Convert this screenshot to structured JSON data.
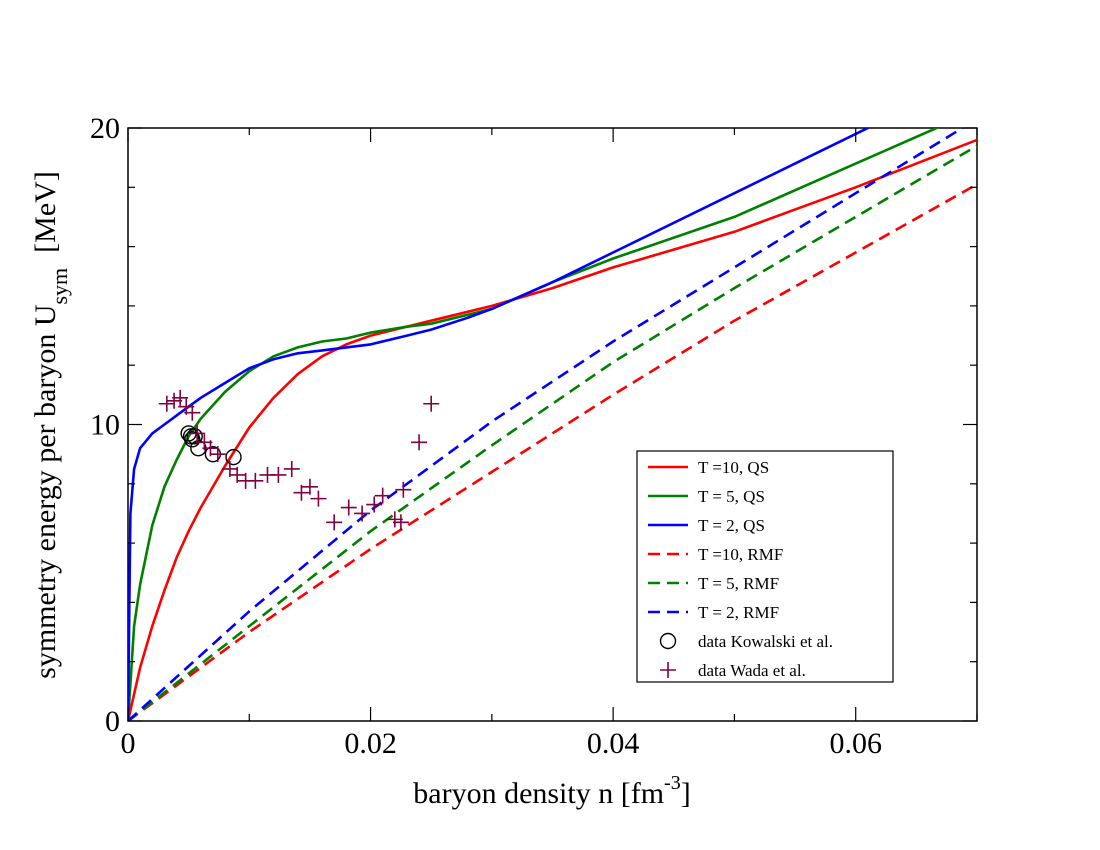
{
  "chart_data": {
    "type": "line",
    "xlabel": "baryon density n [fm",
    "xlabel_sup": "-3",
    "xlabel_tail": "]",
    "ylabel": "symmetry energy per baryon U",
    "ylabel_sub": "sym",
    "ylabel_tail": "  [MeV]",
    "xlim": [
      0,
      0.07
    ],
    "ylim": [
      0,
      20
    ],
    "x_ticks": [
      {
        "value": 0,
        "label": "0"
      },
      {
        "value": 0.02,
        "label": "0.02"
      },
      {
        "value": 0.04,
        "label": "0.04"
      },
      {
        "value": 0.06,
        "label": "0.06"
      }
    ],
    "y_ticks": [
      {
        "value": 0,
        "label": "0"
      },
      {
        "value": 10,
        "label": "10"
      },
      {
        "value": 20,
        "label": "20"
      }
    ],
    "x_minor_step": 0.01,
    "y_minor_step": 2,
    "grid": false,
    "legend_position": "lower-right",
    "series": [
      {
        "name": "T =10, QS",
        "color": "#ff0000",
        "style": "solid",
        "x": [
          0,
          0.001,
          0.002,
          0.003,
          0.004,
          0.005,
          0.006,
          0.008,
          0.01,
          0.012,
          0.014,
          0.016,
          0.018,
          0.02,
          0.022,
          0.025,
          0.03,
          0.035,
          0.04,
          0.05,
          0.06,
          0.07
        ],
        "y": [
          0,
          1.8,
          3.2,
          4.4,
          5.5,
          6.4,
          7.2,
          8.6,
          9.9,
          10.9,
          11.7,
          12.3,
          12.7,
          13.0,
          13.2,
          13.5,
          14.0,
          14.6,
          15.3,
          16.5,
          18.0,
          19.6
        ]
      },
      {
        "name": "T = 5, QS",
        "color": "#008000",
        "style": "solid",
        "x": [
          0,
          0.0005,
          0.001,
          0.002,
          0.003,
          0.004,
          0.005,
          0.006,
          0.008,
          0.01,
          0.012,
          0.014,
          0.016,
          0.018,
          0.02,
          0.023,
          0.025,
          0.03,
          0.035,
          0.04,
          0.05,
          0.06,
          0.07
        ],
        "y": [
          0,
          3.2,
          4.6,
          6.6,
          7.9,
          8.8,
          9.6,
          10.2,
          11.1,
          11.8,
          12.3,
          12.6,
          12.8,
          12.9,
          13.1,
          13.3,
          13.4,
          13.9,
          14.8,
          15.6,
          17.0,
          18.8,
          20.6
        ]
      },
      {
        "name": "T = 2, QS",
        "color": "#0000ff",
        "style": "solid",
        "x": [
          0,
          0.0002,
          0.0005,
          0.001,
          0.002,
          0.003,
          0.004,
          0.005,
          0.006,
          0.008,
          0.01,
          0.012,
          0.014,
          0.016,
          0.018,
          0.02,
          0.023,
          0.025,
          0.028,
          0.03,
          0.035,
          0.04,
          0.05,
          0.06,
          0.07
        ],
        "y": [
          0,
          7.0,
          8.5,
          9.2,
          9.7,
          10.0,
          10.3,
          10.6,
          10.9,
          11.4,
          11.9,
          12.2,
          12.4,
          12.5,
          12.6,
          12.7,
          13.0,
          13.2,
          13.6,
          13.9,
          14.8,
          15.8,
          17.8,
          19.8,
          21.8
        ]
      },
      {
        "name": "T =10, RMF",
        "color": "#ff0000",
        "style": "dashed",
        "x": [
          0,
          0.01,
          0.02,
          0.03,
          0.04,
          0.05,
          0.06,
          0.07
        ],
        "y": [
          0,
          3.0,
          5.8,
          8.4,
          11.0,
          13.5,
          15.8,
          18.1
        ]
      },
      {
        "name": "T = 5, RMF",
        "color": "#008000",
        "style": "dashed",
        "x": [
          0,
          0.01,
          0.02,
          0.03,
          0.04,
          0.05,
          0.06,
          0.07
        ],
        "y": [
          0,
          3.2,
          6.4,
          9.3,
          12.1,
          14.6,
          17.0,
          19.4
        ]
      },
      {
        "name": "T = 2, RMF",
        "color": "#0000ff",
        "style": "dashed",
        "x": [
          0,
          0.01,
          0.02,
          0.03,
          0.04,
          0.05,
          0.06,
          0.07
        ],
        "y": [
          0,
          3.7,
          7.1,
          10.1,
          12.8,
          15.3,
          17.8,
          20.3
        ]
      }
    ],
    "scatter": [
      {
        "name": "data Kowalski et al.",
        "marker": "circle",
        "color": "#000000",
        "x": [
          0.005,
          0.0052,
          0.0053,
          0.0055,
          0.0058,
          0.007,
          0.0087
        ],
        "y": [
          9.7,
          9.6,
          9.5,
          9.6,
          9.2,
          9.0,
          8.9
        ]
      },
      {
        "name": "data Wada et al.",
        "marker": "plus",
        "color": "#800040",
        "x": [
          0.0032,
          0.0038,
          0.0043,
          0.0048,
          0.0053,
          0.0057,
          0.0063,
          0.0068,
          0.0074,
          0.0084,
          0.009,
          0.0097,
          0.0105,
          0.0115,
          0.0124,
          0.0135,
          0.0143,
          0.015,
          0.0157,
          0.017,
          0.0182,
          0.0193,
          0.0203,
          0.021,
          0.022,
          0.0225,
          0.0227,
          0.024,
          0.025
        ],
        "y": [
          10.7,
          10.8,
          10.9,
          10.6,
          10.4,
          9.7,
          9.4,
          9.2,
          9.0,
          8.5,
          8.3,
          8.1,
          8.1,
          8.3,
          8.3,
          8.5,
          7.7,
          7.9,
          7.5,
          6.7,
          7.2,
          7.0,
          7.3,
          7.6,
          6.8,
          6.7,
          7.8,
          9.4,
          10.7
        ]
      }
    ]
  }
}
